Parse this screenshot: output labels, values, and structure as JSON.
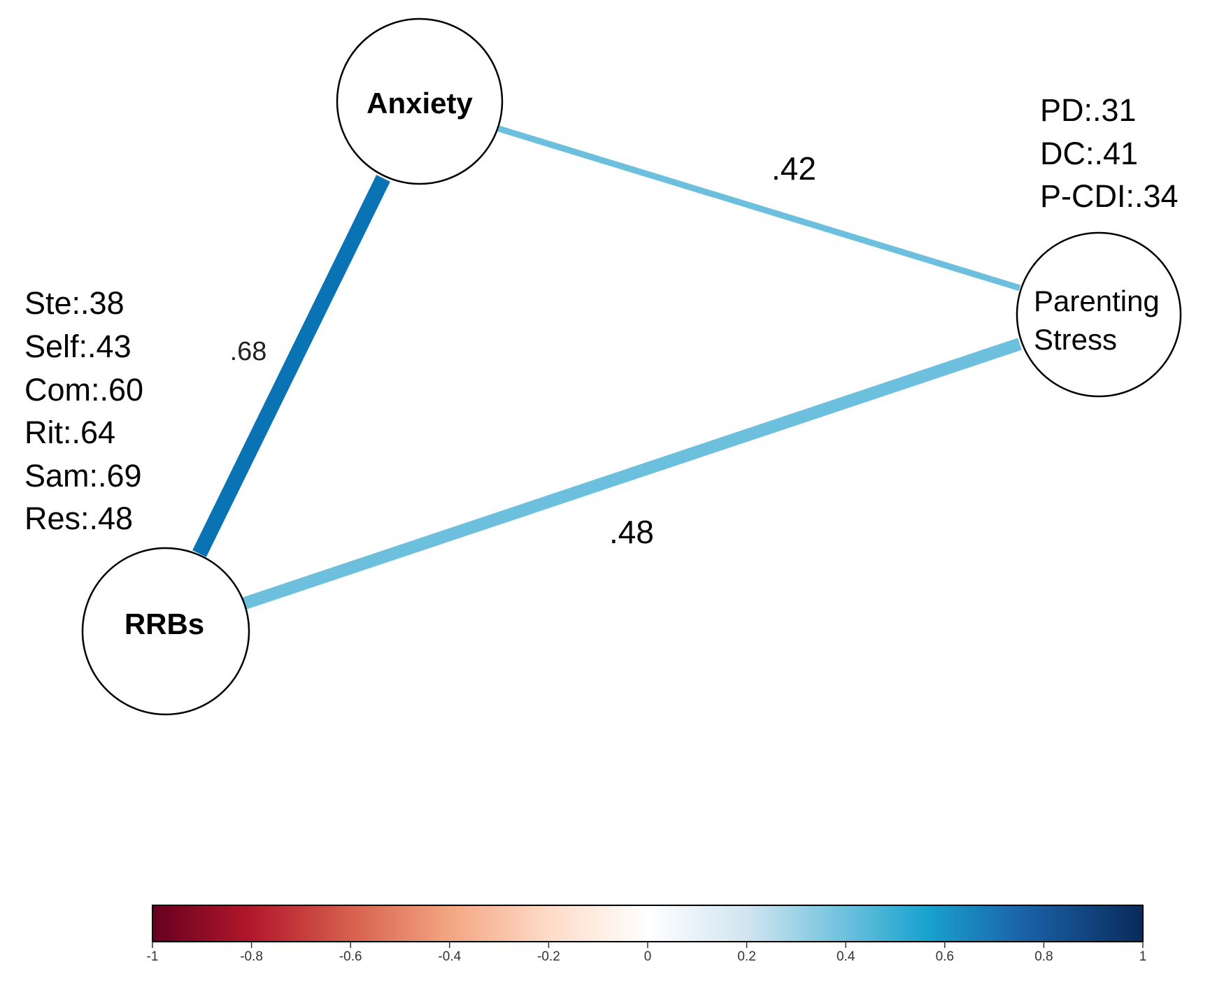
{
  "nodes": {
    "anxiety": {
      "label": "Anxiety"
    },
    "rrbs": {
      "label": "RRBs"
    },
    "parenting": {
      "label_line1": "Parenting",
      "label_line2": "Stress"
    }
  },
  "loadings": {
    "rrbs": [
      "Ste:.38",
      "Self:.43",
      "Com:.60",
      "Rit:.64",
      "Sam:.69",
      "Res:.48"
    ],
    "parenting": [
      "PD:.31",
      "DC:.41",
      "P-CDI:.34"
    ]
  },
  "edges": [
    {
      "from": "rrbs",
      "to": "anxiety",
      "value": 0.68,
      "label": ".68",
      "color": "#0a73b3"
    },
    {
      "from": "anxiety",
      "to": "parenting",
      "value": 0.42,
      "label": ".42",
      "color": "#6cc0dd"
    },
    {
      "from": "rrbs",
      "to": "parenting",
      "value": 0.48,
      "label": ".48",
      "color": "#6cc0dd"
    }
  ],
  "colorbar": {
    "min": -1,
    "max": 1,
    "ticks": [
      "-1",
      "-0.8",
      "-0.6",
      "-0.4",
      "-0.2",
      "0",
      "0.2",
      "0.4",
      "0.6",
      "0.8",
      "1"
    ],
    "stops": [
      "#67001f",
      "#b2182b",
      "#d6604d",
      "#f4a582",
      "#fddbc7",
      "#ffffff",
      "#d1e5f0",
      "#92c5de",
      "#4393c3",
      "#2166ac",
      "#053061"
    ]
  }
}
